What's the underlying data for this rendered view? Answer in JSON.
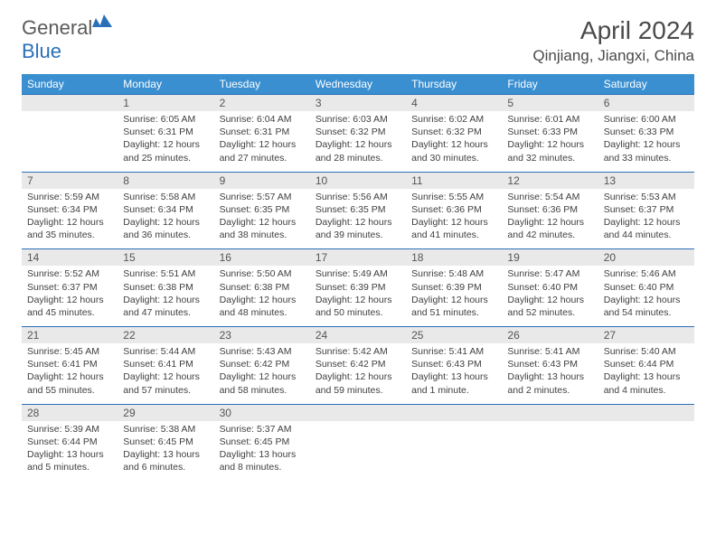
{
  "logo": {
    "text_gray": "General",
    "text_blue": "Blue"
  },
  "title": "April 2024",
  "location": "Qinjiang, Jiangxi, China",
  "colors": {
    "header_bg": "#3a8fd0",
    "header_border": "#2970b8",
    "daynum_bg": "#e9e9e9",
    "text": "#404040"
  },
  "weekdays": [
    "Sunday",
    "Monday",
    "Tuesday",
    "Wednesday",
    "Thursday",
    "Friday",
    "Saturday"
  ],
  "weeks": [
    {
      "nums": [
        "",
        "1",
        "2",
        "3",
        "4",
        "5",
        "6"
      ],
      "cells": [
        null,
        {
          "sunrise": "6:05 AM",
          "sunset": "6:31 PM",
          "daylight": "12 hours and 25 minutes."
        },
        {
          "sunrise": "6:04 AM",
          "sunset": "6:31 PM",
          "daylight": "12 hours and 27 minutes."
        },
        {
          "sunrise": "6:03 AM",
          "sunset": "6:32 PM",
          "daylight": "12 hours and 28 minutes."
        },
        {
          "sunrise": "6:02 AM",
          "sunset": "6:32 PM",
          "daylight": "12 hours and 30 minutes."
        },
        {
          "sunrise": "6:01 AM",
          "sunset": "6:33 PM",
          "daylight": "12 hours and 32 minutes."
        },
        {
          "sunrise": "6:00 AM",
          "sunset": "6:33 PM",
          "daylight": "12 hours and 33 minutes."
        }
      ]
    },
    {
      "nums": [
        "7",
        "8",
        "9",
        "10",
        "11",
        "12",
        "13"
      ],
      "cells": [
        {
          "sunrise": "5:59 AM",
          "sunset": "6:34 PM",
          "daylight": "12 hours and 35 minutes."
        },
        {
          "sunrise": "5:58 AM",
          "sunset": "6:34 PM",
          "daylight": "12 hours and 36 minutes."
        },
        {
          "sunrise": "5:57 AM",
          "sunset": "6:35 PM",
          "daylight": "12 hours and 38 minutes."
        },
        {
          "sunrise": "5:56 AM",
          "sunset": "6:35 PM",
          "daylight": "12 hours and 39 minutes."
        },
        {
          "sunrise": "5:55 AM",
          "sunset": "6:36 PM",
          "daylight": "12 hours and 41 minutes."
        },
        {
          "sunrise": "5:54 AM",
          "sunset": "6:36 PM",
          "daylight": "12 hours and 42 minutes."
        },
        {
          "sunrise": "5:53 AM",
          "sunset": "6:37 PM",
          "daylight": "12 hours and 44 minutes."
        }
      ]
    },
    {
      "nums": [
        "14",
        "15",
        "16",
        "17",
        "18",
        "19",
        "20"
      ],
      "cells": [
        {
          "sunrise": "5:52 AM",
          "sunset": "6:37 PM",
          "daylight": "12 hours and 45 minutes."
        },
        {
          "sunrise": "5:51 AM",
          "sunset": "6:38 PM",
          "daylight": "12 hours and 47 minutes."
        },
        {
          "sunrise": "5:50 AM",
          "sunset": "6:38 PM",
          "daylight": "12 hours and 48 minutes."
        },
        {
          "sunrise": "5:49 AM",
          "sunset": "6:39 PM",
          "daylight": "12 hours and 50 minutes."
        },
        {
          "sunrise": "5:48 AM",
          "sunset": "6:39 PM",
          "daylight": "12 hours and 51 minutes."
        },
        {
          "sunrise": "5:47 AM",
          "sunset": "6:40 PM",
          "daylight": "12 hours and 52 minutes."
        },
        {
          "sunrise": "5:46 AM",
          "sunset": "6:40 PM",
          "daylight": "12 hours and 54 minutes."
        }
      ]
    },
    {
      "nums": [
        "21",
        "22",
        "23",
        "24",
        "25",
        "26",
        "27"
      ],
      "cells": [
        {
          "sunrise": "5:45 AM",
          "sunset": "6:41 PM",
          "daylight": "12 hours and 55 minutes."
        },
        {
          "sunrise": "5:44 AM",
          "sunset": "6:41 PM",
          "daylight": "12 hours and 57 minutes."
        },
        {
          "sunrise": "5:43 AM",
          "sunset": "6:42 PM",
          "daylight": "12 hours and 58 minutes."
        },
        {
          "sunrise": "5:42 AM",
          "sunset": "6:42 PM",
          "daylight": "12 hours and 59 minutes."
        },
        {
          "sunrise": "5:41 AM",
          "sunset": "6:43 PM",
          "daylight": "13 hours and 1 minute."
        },
        {
          "sunrise": "5:41 AM",
          "sunset": "6:43 PM",
          "daylight": "13 hours and 2 minutes."
        },
        {
          "sunrise": "5:40 AM",
          "sunset": "6:44 PM",
          "daylight": "13 hours and 4 minutes."
        }
      ]
    },
    {
      "nums": [
        "28",
        "29",
        "30",
        "",
        "",
        "",
        ""
      ],
      "cells": [
        {
          "sunrise": "5:39 AM",
          "sunset": "6:44 PM",
          "daylight": "13 hours and 5 minutes."
        },
        {
          "sunrise": "5:38 AM",
          "sunset": "6:45 PM",
          "daylight": "13 hours and 6 minutes."
        },
        {
          "sunrise": "5:37 AM",
          "sunset": "6:45 PM",
          "daylight": "13 hours and 8 minutes."
        },
        null,
        null,
        null,
        null
      ]
    }
  ],
  "labels": {
    "sunrise": "Sunrise:",
    "sunset": "Sunset:",
    "daylight": "Daylight:"
  }
}
